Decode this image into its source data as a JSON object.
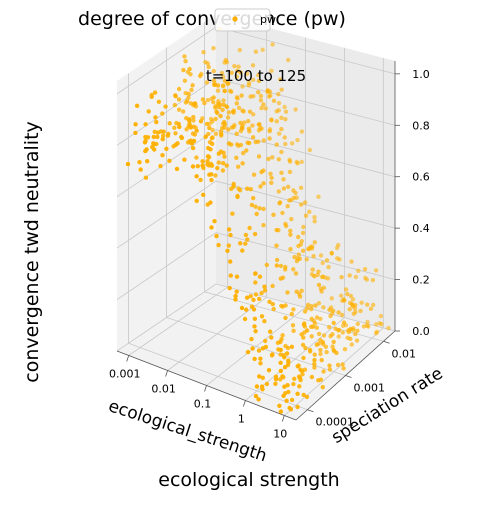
{
  "chart_data": {
    "type": "scatter",
    "projection": "3d",
    "figure_title": "degree of convergence (pw)",
    "title": "t=100 to 125",
    "figure_xlabel": "ecological strength",
    "figure_ylabel": "convergence twd neutrality",
    "xlabel": "ecological_strength",
    "ylabel": "speciation rate",
    "zlabel": "",
    "x_scale": "log",
    "y_scale": "log",
    "x_ticks": [
      "0.001",
      "0.01",
      "0.1",
      "1",
      "10"
    ],
    "y_ticks": [
      "0.0001",
      "0.001",
      "0.01"
    ],
    "z_ticks": [
      "0.0",
      "0.2",
      "0.4",
      "0.6",
      "0.8",
      "1.0"
    ],
    "xlim": [
      0.0005,
      20
    ],
    "ylim": [
      5e-05,
      0.02
    ],
    "zlim": [
      0,
      1.05
    ],
    "grid": true,
    "legend": {
      "position": "top-center",
      "entries": [
        "pw"
      ]
    },
    "series": [
      {
        "name": "pw",
        "color": "#ffb000",
        "description": "about 700 points; z near 0.6-1.0 for ecological_strength 0.001-0.1, declining to 0-0.2 for ecological_strength above 1, spread across all speciation rates"
      }
    ]
  }
}
